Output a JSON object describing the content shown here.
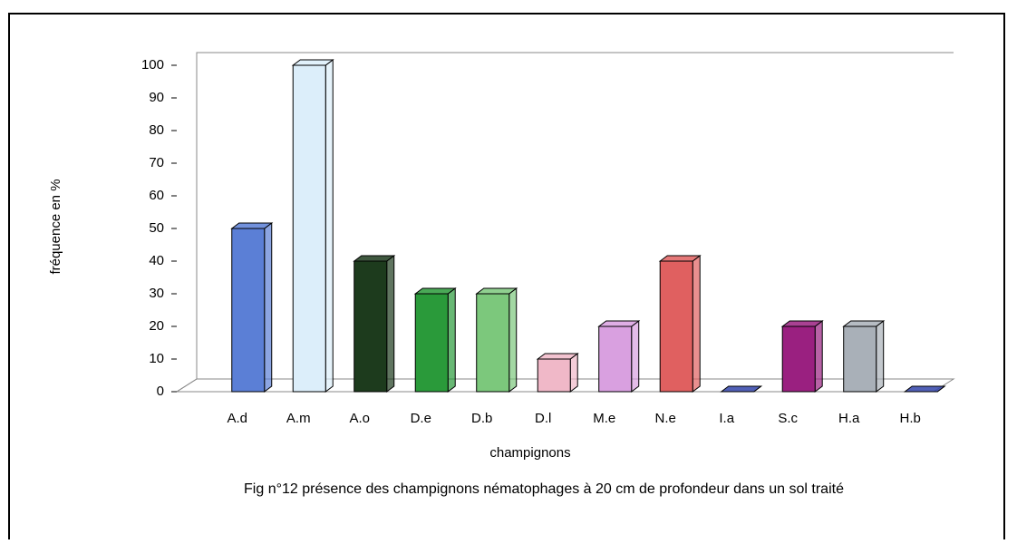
{
  "chart_data": {
    "type": "bar3d",
    "y_label": "fréquence en %",
    "x_label": "champignons",
    "caption": "Fig n°12 présence des champignons nématophages à 20 cm de profondeur dans un sol traité",
    "categories": [
      "A.d",
      "A.m",
      "A.o",
      "D.e",
      "D.b",
      "D.l",
      "M.e",
      "N.e",
      "I.a",
      "S.c",
      "H.a",
      "H.b"
    ],
    "values": [
      50,
      100,
      40,
      30,
      30,
      10,
      20,
      40,
      0,
      20,
      20,
      0
    ],
    "colors": [
      "#5b7fd6",
      "#dceefa",
      "#1d3b1d",
      "#2a9a3a",
      "#7cc87c",
      "#f0b8c8",
      "#d9a0e0",
      "#e06060",
      "#3344aa",
      "#9a2080",
      "#a9b0b8",
      "#3344aa"
    ],
    "ylim": [
      0,
      100
    ],
    "yticks": [
      0,
      10,
      20,
      30,
      40,
      50,
      60,
      70,
      80,
      90,
      100
    ]
  }
}
